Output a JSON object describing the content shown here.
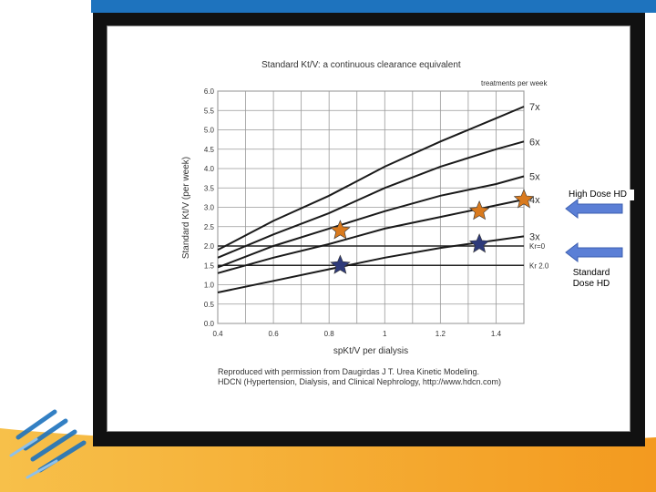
{
  "slide": {
    "callouts": {
      "high_dose": "High Dose  HD",
      "standard_dose": "Standard Dose  HD"
    },
    "colors": {
      "brand_blue": "#1e73be",
      "brand_orange": "#f5a623",
      "star_orange": "#d97a1e",
      "star_navy": "#2e3a7a",
      "arrow_blue": "#5b7fd6"
    },
    "icons": [
      "star-icon",
      "left-arrow-icon"
    ]
  },
  "chart_data": {
    "type": "line",
    "title": "Standard Kt/V: a continuous clearance equivalent",
    "xlabel": "spKt/V per dialysis",
    "ylabel": "Standard Kt/V (per week)",
    "legend_title": "treatments per week",
    "xlim": [
      0.4,
      1.5
    ],
    "ylim": [
      0.0,
      6.0
    ],
    "x_ticks": [
      "0.4",
      "0.6",
      "0.8",
      "1",
      "1.2",
      "1.4"
    ],
    "y_ticks": [
      "0.0",
      "0.5",
      "1.0",
      "1.5",
      "2.0",
      "2.5",
      "3.0",
      "3.5",
      "4.0",
      "4.5",
      "5.0",
      "5.5",
      "6.0"
    ],
    "grid": true,
    "x": [
      0.4,
      0.6,
      0.8,
      1.0,
      1.2,
      1.4,
      1.5
    ],
    "series": [
      {
        "name": "7x",
        "values": [
          1.9,
          2.65,
          3.3,
          4.05,
          4.7,
          5.3,
          5.6
        ]
      },
      {
        "name": "6x",
        "values": [
          1.7,
          2.3,
          2.85,
          3.5,
          4.05,
          4.5,
          4.7
        ]
      },
      {
        "name": "5x",
        "values": [
          1.45,
          2.0,
          2.45,
          2.9,
          3.3,
          3.6,
          3.8
        ]
      },
      {
        "name": "4x",
        "values": [
          1.3,
          1.7,
          2.05,
          2.45,
          2.75,
          3.05,
          3.2
        ]
      },
      {
        "name": "3x",
        "values": [
          0.8,
          1.1,
          1.4,
          1.7,
          1.95,
          2.15,
          2.25
        ]
      }
    ],
    "reference_lines": [
      {
        "label": "Kr=0",
        "y": 2.0
      },
      {
        "label": "Kr 2.0",
        "y": 1.5
      }
    ],
    "markers": [
      {
        "x": 0.84,
        "y": 2.4,
        "color": "#d97a1e"
      },
      {
        "x": 1.34,
        "y": 2.9,
        "color": "#d97a1e"
      },
      {
        "x": 1.5,
        "y": 3.2,
        "color": "#d97a1e"
      },
      {
        "x": 0.84,
        "y": 1.5,
        "color": "#2e3a7a"
      },
      {
        "x": 1.34,
        "y": 2.05,
        "color": "#2e3a7a"
      }
    ],
    "credit": [
      "Reproduced with permission from Daugirdas J T.  Urea Kinetic Modeling.",
      "HDCN (Hypertension, Dialysis, and Clinical Nephrology, http://www.hdcn.com)"
    ]
  }
}
